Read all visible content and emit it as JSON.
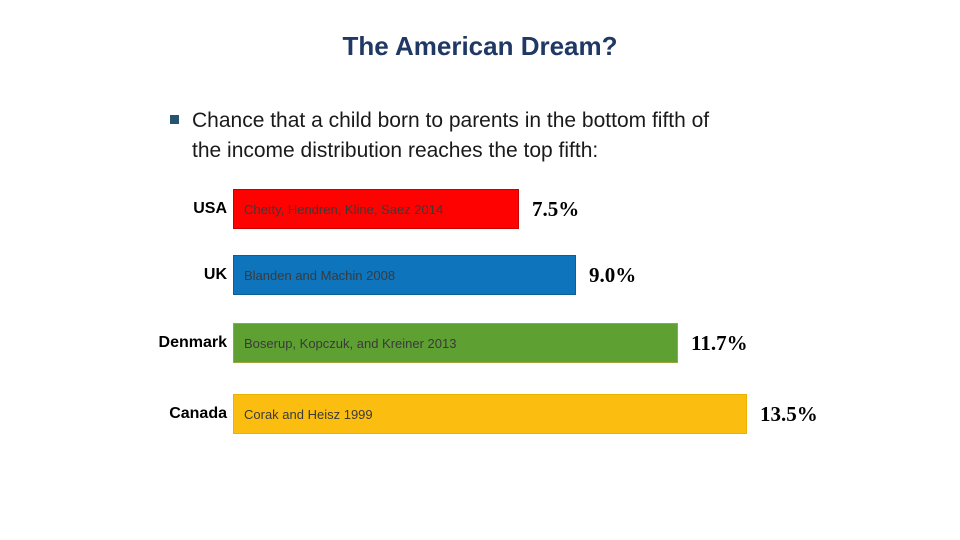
{
  "slide": {
    "title": "The American Dream?",
    "title_color": "#1F3864",
    "bullet_marker_color": "#26536F",
    "bullet_lines": [
      "Chance that a child born to parents in the bottom fifth of",
      "the income distribution reaches the top fifth:"
    ]
  },
  "chart_data": {
    "type": "bar",
    "orientation": "horizontal",
    "title": "",
    "xlabel": "",
    "ylabel": "",
    "grid": false,
    "legend": "none",
    "categories": [
      "USA",
      "UK",
      "Denmark",
      "Canada"
    ],
    "values": [
      7.5,
      9.0,
      11.7,
      13.5
    ],
    "value_labels": [
      "7.5%",
      "9.0%",
      "11.7%",
      "13.5%"
    ],
    "bar_annotations": [
      "Chetty, Hendren, Kline, Saez 2014",
      "Blanden and Machin 2008",
      "Boserup, Kopczuk, and Kreiner 2013",
      "Corak and Heisz 1999"
    ],
    "bar_colors": [
      "#FE0202",
      "#0E74BC",
      "#5FA033",
      "#FBBE10"
    ],
    "bar_border_colors": [
      "#C80000",
      "#0A5E9C",
      "#9CA63C",
      "#EDB100"
    ]
  }
}
